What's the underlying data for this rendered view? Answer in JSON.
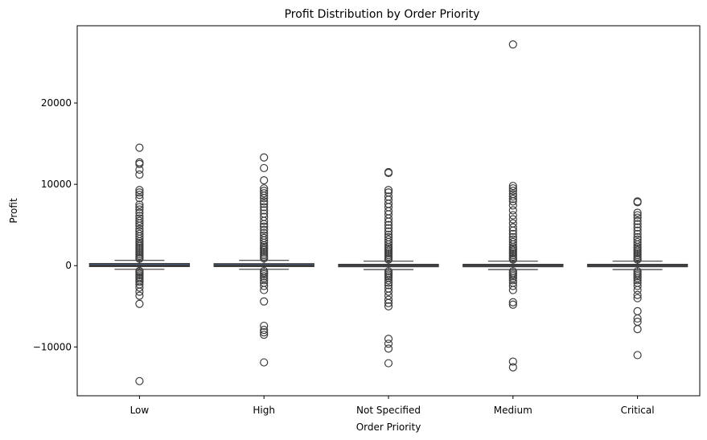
{
  "chart_data": {
    "type": "box",
    "title": "Profit Distribution by Order Priority",
    "xlabel": "Order Priority",
    "ylabel": "Profit",
    "ylim": [
      -16000,
      29500
    ],
    "yticks": [
      -10000,
      0,
      10000,
      20000
    ],
    "ytick_labels": [
      "−10000",
      "0",
      "10000",
      "20000"
    ],
    "grid": false,
    "box_color": "#4c72b0",
    "line_color": "#3d3d3d",
    "categories": [
      "Low",
      "High",
      "Not Specified",
      "Medium",
      "Critical"
    ],
    "boxes": [
      {
        "category": "Low",
        "q1": -100,
        "median": 50,
        "q3": 250,
        "whisker_low": -450,
        "whisker_high": 650,
        "outliers": [
          14500,
          12700,
          12500,
          11800,
          11200,
          9300,
          9000,
          8700,
          8300,
          7500,
          7200,
          6900,
          6500,
          6100,
          5800,
          5500,
          5200,
          4900,
          4500,
          4200,
          3900,
          3600,
          3300,
          3000,
          2800,
          2600,
          2400,
          2200,
          2000,
          1800,
          1600,
          1400,
          1200,
          1000,
          850,
          -650,
          -800,
          -1000,
          -1200,
          -1400,
          -1600,
          -1800,
          -2000,
          -2300,
          -2700,
          -3200,
          -3700,
          -4700,
          -14200
        ]
      },
      {
        "category": "High",
        "q1": -100,
        "median": 40,
        "q3": 230,
        "whisker_low": -450,
        "whisker_high": 650,
        "outliers": [
          13300,
          12000,
          10500,
          9500,
          9200,
          8900,
          8600,
          8300,
          7900,
          7600,
          7200,
          6800,
          6400,
          6000,
          5500,
          5100,
          4800,
          4400,
          4000,
          3700,
          3400,
          3100,
          2800,
          2500,
          2300,
          2100,
          1900,
          1700,
          1500,
          1300,
          1100,
          900,
          -650,
          -850,
          -1050,
          -1300,
          -1550,
          -1800,
          -2100,
          -2500,
          -3000,
          -4400,
          -7400,
          -7900,
          -8200,
          -8500,
          -11900
        ]
      },
      {
        "category": "Not Specified",
        "q1": -120,
        "median": 20,
        "q3": 150,
        "whisker_low": -480,
        "whisker_high": 550,
        "outliers": [
          11500,
          11400,
          9300,
          9000,
          8500,
          8100,
          7600,
          7200,
          6700,
          6300,
          5800,
          5400,
          5000,
          4600,
          4200,
          3800,
          3500,
          3200,
          2900,
          2600,
          2300,
          2100,
          1900,
          1700,
          1500,
          1300,
          1100,
          900,
          750,
          -700,
          -900,
          -1100,
          -1300,
          -1500,
          -1800,
          -2100,
          -2400,
          -2800,
          -3200,
          -3700,
          -4200,
          -4600,
          -5000,
          -9000,
          -9600,
          -10200,
          -12000
        ]
      },
      {
        "category": "Medium",
        "q1": -120,
        "median": 20,
        "q3": 150,
        "whisker_low": -480,
        "whisker_high": 550,
        "outliers": [
          27200,
          9800,
          9500,
          9200,
          8800,
          8500,
          8200,
          7900,
          7400,
          6800,
          6200,
          5700,
          5200,
          4700,
          4300,
          3900,
          3500,
          3200,
          2900,
          2600,
          2300,
          2100,
          1900,
          1700,
          1500,
          1300,
          1100,
          900,
          750,
          -700,
          -900,
          -1100,
          -1300,
          -1550,
          -1800,
          -2100,
          -2500,
          -3000,
          -4500,
          -4800,
          -11800,
          -12500
        ]
      },
      {
        "category": "Critical",
        "q1": -120,
        "median": 20,
        "q3": 150,
        "whisker_low": -480,
        "whisker_high": 550,
        "outliers": [
          7900,
          7800,
          6500,
          6200,
          5900,
          5500,
          5100,
          4700,
          4300,
          3900,
          3500,
          3200,
          2900,
          2600,
          2300,
          2100,
          1900,
          1700,
          1500,
          1300,
          1100,
          900,
          750,
          -700,
          -900,
          -1100,
          -1300,
          -1550,
          -1800,
          -2100,
          -2500,
          -3000,
          -3600,
          -4000,
          -5600,
          -6500,
          -6900,
          -7800,
          -11000
        ]
      }
    ]
  }
}
